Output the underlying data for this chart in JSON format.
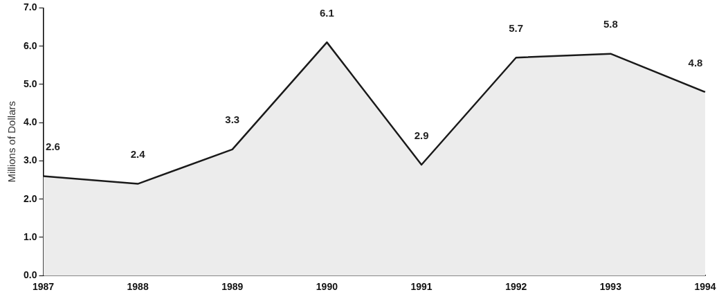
{
  "chart_data": {
    "type": "area",
    "ylabel": "Millions of Dollars",
    "categories": [
      "1987",
      "1988",
      "1989",
      "1990",
      "1991",
      "1992",
      "1993",
      "1994"
    ],
    "series": [
      {
        "color": "#1a1a1a",
        "values": [
          2.6,
          2.4,
          3.3,
          6.1,
          2.9,
          5.7,
          5.8,
          4.8
        ]
      }
    ],
    "ylim": [
      0,
      7
    ],
    "yticks": [
      {
        "value": 0,
        "label": "0.0"
      },
      {
        "value": 1,
        "label": "1.0"
      },
      {
        "value": 2,
        "label": "2.0"
      },
      {
        "value": 3,
        "label": "3.0"
      },
      {
        "value": 4,
        "label": "4.0"
      },
      {
        "value": 5,
        "label": "5.0"
      },
      {
        "value": 6,
        "label": "6.0"
      },
      {
        "value": 7,
        "label": "7.0"
      }
    ],
    "grid": false,
    "legend": false,
    "data_labels": true
  }
}
